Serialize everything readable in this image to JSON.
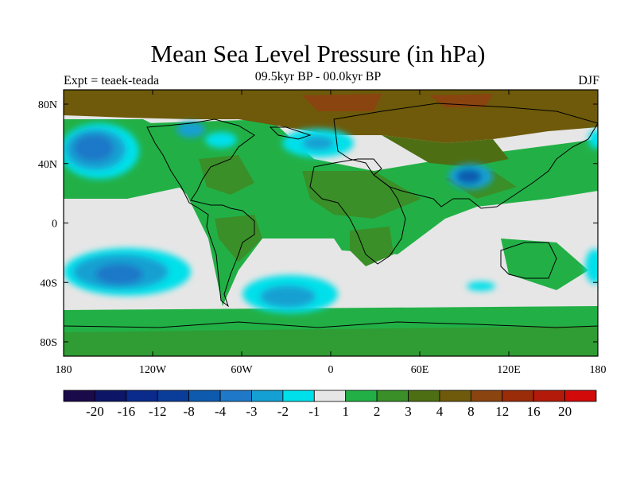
{
  "map": {
    "title": "Mean Sea Level Pressure (in hPa)",
    "left_label": "Expt = teaek-teada",
    "center_label": "09.5kyr BP - 00.0kyr BP",
    "right_label": "DJF",
    "projection": "cylindrical equidistant",
    "lon_range": [
      -180,
      180
    ],
    "lat_range": [
      -90,
      90
    ],
    "lon_ticks": [
      "180",
      "120W",
      "60W",
      "0",
      "60E",
      "120E",
      "180"
    ],
    "lat_ticks": [
      "80N",
      "40N",
      "0",
      "40S",
      "80S"
    ]
  },
  "colorbar": {
    "colors": [
      "#1a0a4a",
      "#0d1666",
      "#0a2a8c",
      "#0a3d99",
      "#0d5aae",
      "#1f78c8",
      "#14a0d2",
      "#00e0ea",
      "#e6e6e6",
      "#22b046",
      "#3a8f28",
      "#4e6e14",
      "#6e5a0a",
      "#8a4410",
      "#9a2c0a",
      "#b41a0a",
      "#d20a0a"
    ],
    "labels": [
      "-20",
      "-16",
      "-12",
      "-8",
      "-4",
      "-3",
      "-2",
      "-1",
      "1",
      "2",
      "3",
      "4",
      "8",
      "12",
      "16",
      "20"
    ]
  },
  "field_regions": [
    {
      "name": "north-pacific-low",
      "lon": -150,
      "lat": 48,
      "level": -3
    },
    {
      "name": "south-pacific-low",
      "lon": -125,
      "lat": -32,
      "level": -3
    },
    {
      "name": "south-atlantic-low",
      "lon": -25,
      "lat": -48,
      "level": -2
    },
    {
      "name": "north-atlantic-low",
      "lon": -30,
      "lat": 55,
      "level": -2
    },
    {
      "name": "tibet-low",
      "lon": 95,
      "lat": 30,
      "level": -4
    },
    {
      "name": "hudson-low",
      "lon": -85,
      "lat": 65,
      "level": -3
    },
    {
      "name": "arctic-high",
      "lon": 60,
      "lat": 82,
      "level": 8
    }
  ]
}
